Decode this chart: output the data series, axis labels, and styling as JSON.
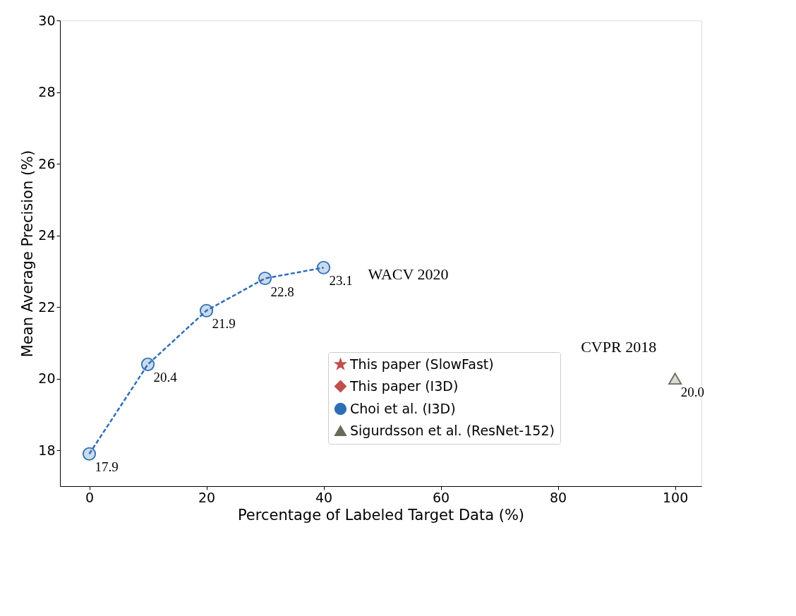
{
  "chart_data": {
    "type": "line",
    "xlabel": "Percentage of Labeled Target Data (%)",
    "ylabel": "Mean Average Precision (%)",
    "xlim": [
      -5,
      104.5
    ],
    "ylim": [
      17,
      30
    ],
    "xticks": [
      0,
      20,
      40,
      60,
      80,
      100
    ],
    "yticks": [
      18,
      20,
      22,
      24,
      26,
      28,
      30
    ],
    "grid": false,
    "legend": "bottom right",
    "data_labels": true,
    "series": [
      {
        "name": "This paper (SlowFast)",
        "color": "#c0504d",
        "marker": "star"
      },
      {
        "name": "This paper (I3D)",
        "color": "#c0504d",
        "marker": "diamond"
      },
      {
        "name": "Choi et al. (I3D)",
        "color": "#2f6eb5",
        "marker": "circle",
        "line_style": "dashed",
        "x": [
          0,
          10,
          20,
          30,
          40
        ],
        "values": [
          17.9,
          20.4,
          21.9,
          22.8,
          23.1
        ]
      },
      {
        "name": "Sigurdsson et al. (ResNet-152)",
        "type": "scatter",
        "color": "#6b6b5a",
        "marker": "triangle",
        "x": [
          100
        ],
        "values": [
          20.0
        ],
        "value_labels": [
          "20.0"
        ]
      }
    ],
    "annotations": [
      "WACV 2020",
      "CVPR 2018"
    ]
  }
}
